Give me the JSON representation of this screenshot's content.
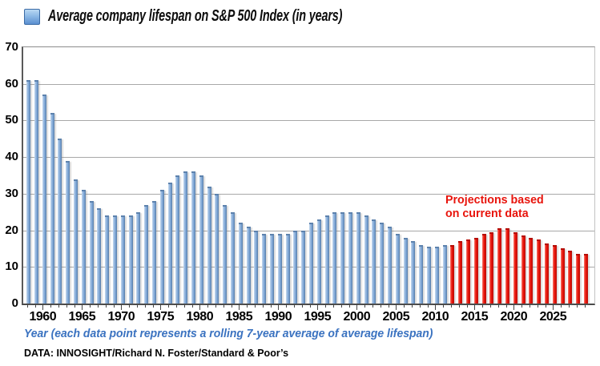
{
  "title": "Average company lifespan on S&P 500 Index (in years)",
  "annotation": {
    "line1": "Projections based",
    "line2": "on current data"
  },
  "x_caption": "Year (each data point represents a rolling 7-year average of average lifespan)",
  "source": "DATA: INNOSIGHT/Richard N. Foster/Standard & Poor’s",
  "colors": {
    "historical_bar": "#6f99ca",
    "projection_bar": "#ea150b",
    "annotation_text": "#e8140c",
    "x_caption_text": "#3a72c0",
    "gridline": "#a8a8a8"
  },
  "chart_data": {
    "type": "bar",
    "title": "Average company lifespan on S&P 500 Index (in years)",
    "xlabel": "Year (each data point represents a rolling 7-year average of average lifespan)",
    "ylabel": "",
    "ylim": [
      0,
      70
    ],
    "grid": true,
    "legend_position": "top-left",
    "legend": "Average company lifespan on S&P 500 Index (in years)",
    "yticks": [
      0,
      10,
      20,
      30,
      40,
      50,
      60,
      70
    ],
    "xticks": [
      1960,
      1965,
      1970,
      1975,
      1980,
      1985,
      1990,
      1995,
      2000,
      2005,
      2010,
      2015,
      2020,
      2025
    ],
    "projection_start_year": 2012,
    "x": [
      1958,
      1959,
      1960,
      1961,
      1962,
      1963,
      1964,
      1965,
      1966,
      1967,
      1968,
      1969,
      1970,
      1971,
      1972,
      1973,
      1974,
      1975,
      1976,
      1977,
      1978,
      1979,
      1980,
      1981,
      1982,
      1983,
      1984,
      1985,
      1986,
      1987,
      1988,
      1989,
      1990,
      1991,
      1992,
      1993,
      1994,
      1995,
      1996,
      1997,
      1998,
      1999,
      2000,
      2001,
      2002,
      2003,
      2004,
      2005,
      2006,
      2007,
      2008,
      2009,
      2010,
      2011,
      2012,
      2013,
      2014,
      2015,
      2016,
      2017,
      2018,
      2019,
      2020,
      2021,
      2022,
      2023,
      2024,
      2025,
      2026,
      2027,
      2028,
      2029
    ],
    "values": [
      61,
      61,
      57,
      52,
      45,
      39,
      34,
      31,
      28,
      26,
      24,
      24,
      24,
      24,
      25,
      27,
      28,
      31,
      33,
      35,
      36,
      36,
      35,
      32,
      30,
      27,
      25,
      22,
      21,
      20,
      19,
      19,
      19,
      19,
      20,
      20,
      22,
      23,
      24,
      25,
      25,
      25,
      25,
      24,
      23,
      22,
      21,
      19,
      18,
      17,
      16,
      15.5,
      15.5,
      16,
      16,
      17,
      17.5,
      18,
      19,
      19.5,
      20.5,
      20.5,
      19.5,
      18.5,
      18,
      17.5,
      16.5,
      16,
      15,
      14.5,
      13.5,
      13.5
    ],
    "series": [
      {
        "name": "Historical (blue)",
        "year_range": [
          1958,
          2011
        ]
      },
      {
        "name": "Projections based on current data (red)",
        "year_range": [
          2012,
          2029
        ]
      }
    ]
  }
}
